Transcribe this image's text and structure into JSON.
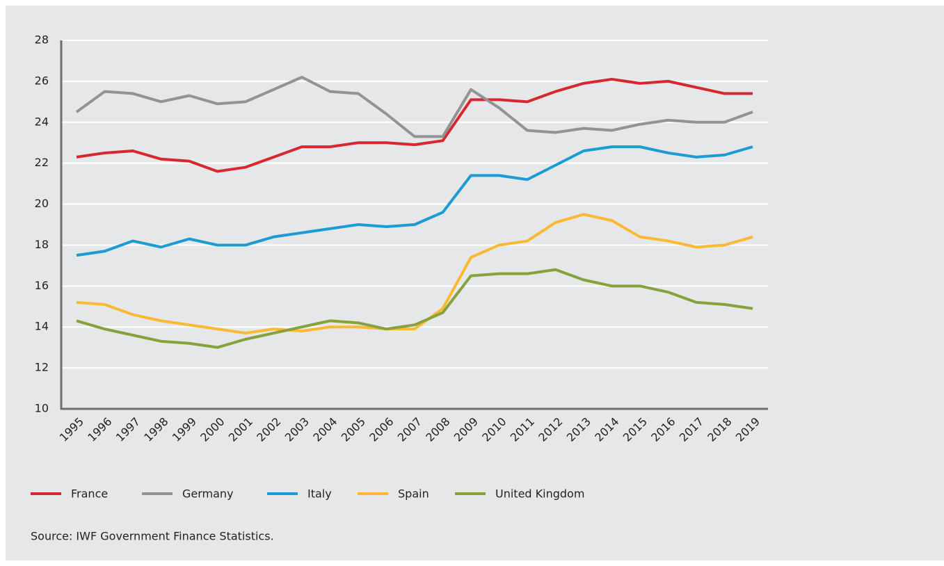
{
  "chart_data": {
    "type": "line",
    "categories": [
      "1995",
      "1996",
      "1997",
      "1998",
      "1999",
      "2000",
      "2001",
      "2002",
      "2003",
      "2004",
      "2005",
      "2006",
      "2007",
      "2008",
      "2009",
      "2010",
      "2011",
      "2012",
      "2013",
      "2014",
      "2015",
      "2016",
      "2017",
      "2018",
      "2019"
    ],
    "series": [
      {
        "name": "France",
        "color": "#d7282f",
        "values": [
          22.3,
          22.5,
          22.6,
          22.2,
          22.1,
          21.6,
          21.8,
          22.3,
          22.8,
          22.8,
          23.0,
          23.0,
          22.9,
          23.1,
          25.1,
          25.1,
          25.0,
          25.5,
          25.9,
          26.1,
          25.9,
          26.0,
          25.7,
          25.4,
          25.4
        ]
      },
      {
        "name": "Germany",
        "color": "#939393",
        "values": [
          24.5,
          25.5,
          25.4,
          25.0,
          25.3,
          24.9,
          25.0,
          25.6,
          26.2,
          25.5,
          25.4,
          24.4,
          23.3,
          23.3,
          25.6,
          24.7,
          23.6,
          23.5,
          23.7,
          23.6,
          23.9,
          24.1,
          24.0,
          24.0,
          24.5
        ]
      },
      {
        "name": "Italy",
        "color": "#1d9cd3",
        "values": [
          17.5,
          17.7,
          18.2,
          17.9,
          18.3,
          18.0,
          18.0,
          18.4,
          18.6,
          18.8,
          19.0,
          18.9,
          19.0,
          19.6,
          21.4,
          21.4,
          21.2,
          21.9,
          22.6,
          22.8,
          22.8,
          22.5,
          22.3,
          22.4,
          22.8
        ]
      },
      {
        "name": "Spain",
        "color": "#fbb933",
        "values": [
          15.2,
          15.1,
          14.6,
          14.3,
          14.1,
          13.9,
          13.7,
          13.9,
          13.8,
          14.0,
          14.0,
          13.9,
          13.9,
          14.9,
          17.4,
          18.0,
          18.2,
          19.1,
          19.5,
          19.2,
          18.4,
          18.2,
          17.9,
          18.0,
          18.4
        ]
      },
      {
        "name": "United Kingdom",
        "color": "#86a23a",
        "values": [
          14.3,
          13.9,
          13.6,
          13.3,
          13.2,
          13.0,
          13.4,
          13.7,
          14.0,
          14.3,
          14.2,
          13.9,
          14.1,
          14.7,
          16.5,
          16.6,
          16.6,
          16.8,
          16.3,
          16.0,
          16.0,
          15.7,
          15.2,
          15.1,
          14.9
        ]
      }
    ],
    "ylim": [
      10,
      28
    ],
    "yticks": [
      10,
      12,
      14,
      16,
      18,
      20,
      22,
      24,
      26,
      28
    ],
    "grid": true,
    "source": "Source: IWF Government Finance Statistics."
  }
}
